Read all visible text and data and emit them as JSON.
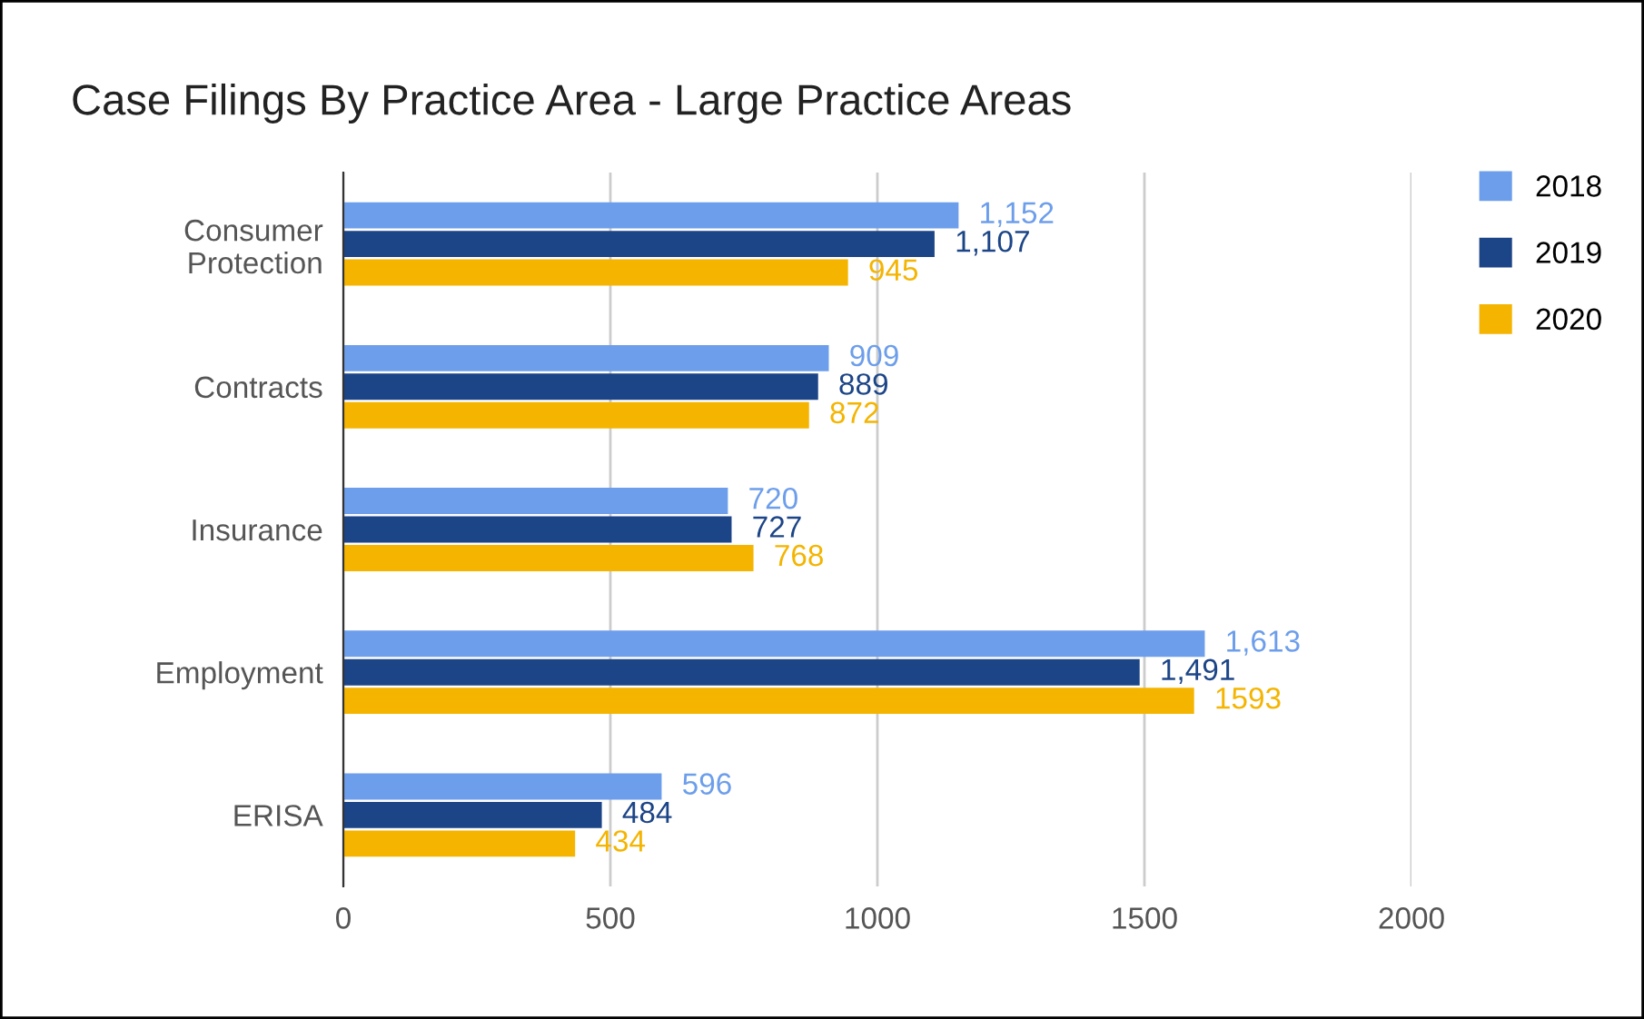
{
  "chart_data": {
    "type": "bar",
    "orientation": "horizontal",
    "title": "Case Filings By Practice Area - Large Practice Areas",
    "categories": [
      "Consumer\nProtection",
      "Contracts",
      "Insurance",
      "Employment",
      "ERISA"
    ],
    "series": [
      {
        "name": "2018",
        "color": "#6d9eeb",
        "values": [
          1152,
          909,
          720,
          1613,
          596
        ],
        "value_labels": [
          "1,152",
          "909",
          "720",
          "1,613",
          "596"
        ]
      },
      {
        "name": "2019",
        "color": "#1c4587",
        "values": [
          1107,
          889,
          727,
          1491,
          484
        ],
        "value_labels": [
          "1,107",
          "889",
          "727",
          "1,491",
          "484"
        ]
      },
      {
        "name": "2020",
        "color": "#f4b400",
        "values": [
          945,
          872,
          768,
          1593,
          434
        ],
        "value_labels": [
          "945",
          "872",
          "768",
          "1593",
          "434"
        ]
      }
    ],
    "xlim": [
      0,
      2000
    ],
    "xticks": [
      0,
      500,
      1000,
      1500,
      2000
    ],
    "grid": "x",
    "legend": "top right"
  }
}
